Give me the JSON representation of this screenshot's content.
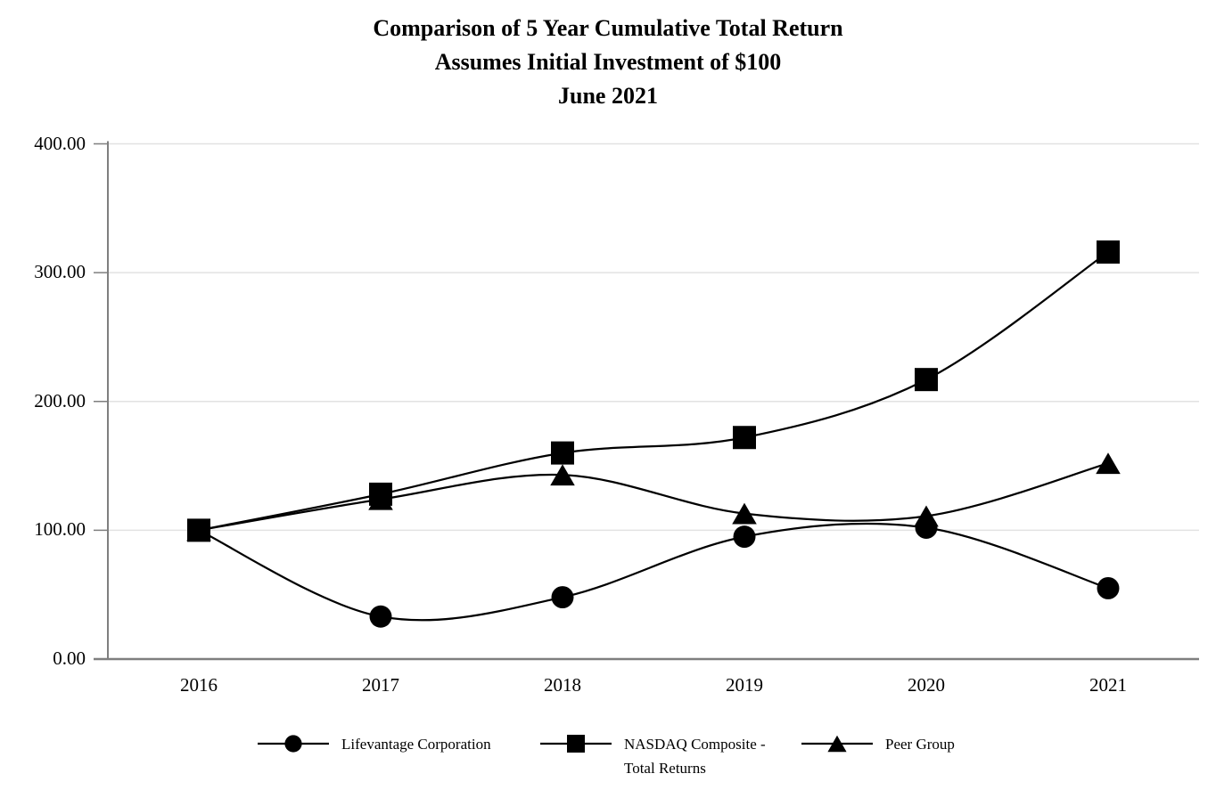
{
  "title": {
    "line1": "Comparison of 5 Year Cumulative Total Return",
    "line2": "Assumes Initial Investment of $100",
    "line3": "June 2021"
  },
  "chart_data": {
    "type": "line",
    "categories": [
      "2016",
      "2017",
      "2018",
      "2019",
      "2020",
      "2021"
    ],
    "series": [
      {
        "name": "Lifevantage Corporation",
        "marker": "circle",
        "values": [
          100.0,
          33.0,
          48.0,
          95.0,
          102.0,
          55.0
        ]
      },
      {
        "name": "NASDAQ Composite - Total Returns",
        "marker": "square",
        "values": [
          100.0,
          128.0,
          160.0,
          172.0,
          217.0,
          316.0
        ]
      },
      {
        "name": "Peer Group",
        "marker": "triangle",
        "values": [
          100.0,
          124.0,
          143.0,
          113.0,
          111.0,
          152.0
        ]
      }
    ],
    "xlabel": "",
    "ylabel": "",
    "ylim": [
      0,
      400
    ],
    "ytick_values": [
      0,
      100,
      200,
      300,
      400
    ],
    "ytick_labels": [
      "0.00",
      "100.00",
      "200.00",
      "300.00",
      "400.00"
    ],
    "grid": true,
    "legend_position": "bottom",
    "series_color": "#000000",
    "axis_color": "#7f7f7f",
    "gridline_color": "#e2e2e2",
    "background_color": "#ffffff"
  },
  "legend": {
    "items": [
      {
        "marker": "circle",
        "label_lines": [
          "Lifevantage Corporation"
        ]
      },
      {
        "marker": "square",
        "label_lines": [
          "NASDAQ Composite -",
          "Total Returns"
        ]
      },
      {
        "marker": "triangle",
        "label_lines": [
          "Peer Group"
        ]
      }
    ]
  }
}
